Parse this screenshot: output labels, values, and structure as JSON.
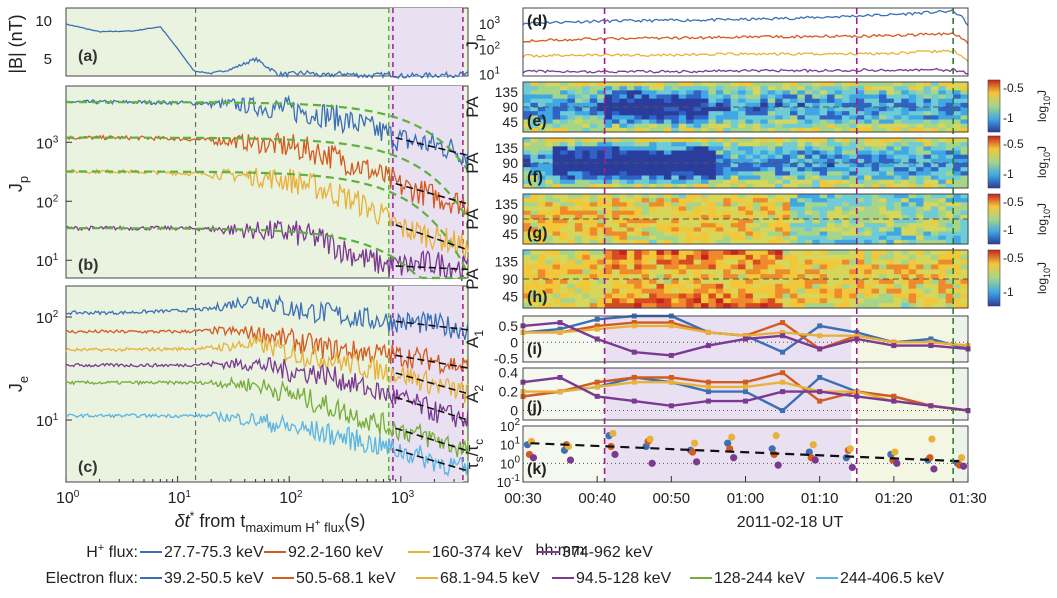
{
  "colors": {
    "hp": [
      "#3B6FB6",
      "#D35B1F",
      "#E8B23A",
      "#7B3A91"
    ],
    "e": [
      "#3B6FB6",
      "#D35B1F",
      "#E8B23A",
      "#7B3A91",
      "#76AC3A",
      "#5CB4E3"
    ],
    "bg_green": "#EAF2E0",
    "bg_purple": "#E9E1F2",
    "fit_green": "#5DB13E",
    "vline_magenta": "#A21C8E",
    "vline_green": "#5DB13E"
  },
  "left": {
    "panels": {
      "a": {
        "label": "(a)",
        "ylabel": "|B| (nT)",
        "yticks": [
          "10",
          "5"
        ]
      },
      "b": {
        "label": "(b)",
        "ylabel": "J",
        "ylabel_sub": "p",
        "yticks": [
          "10",
          "10",
          "10"
        ],
        "ytick_exp": [
          "3",
          "2",
          "1"
        ]
      },
      "c": {
        "label": "(c)",
        "ylabel": "J",
        "ylabel_sub": "e",
        "yticks": [
          "10",
          "10"
        ],
        "ytick_exp": [
          "2",
          "1"
        ]
      }
    },
    "xticks": [
      "10",
      "10",
      "10",
      "10"
    ],
    "xtick_exp": [
      "0",
      "1",
      "2",
      "3"
    ],
    "xlabel": {
      "delta": "δt",
      "star": "*",
      "from": " from t",
      "sub": "maximum H",
      "sub_sup": "+",
      "sub_end": " flux",
      "unit": "(s)"
    }
  },
  "right": {
    "panels": {
      "d": {
        "label": "(d)",
        "ylabel": "J",
        "ylabel_sub": "p",
        "yticks": [
          "10",
          "10",
          "10"
        ],
        "ytick_exp": [
          "3",
          "2",
          "1"
        ]
      },
      "e": {
        "label": "(e)",
        "ylabel": "PA",
        "yticks": [
          "135",
          "90",
          "45"
        ]
      },
      "f": {
        "label": "(f)",
        "ylabel": "PA",
        "yticks": [
          "135",
          "90",
          "45"
        ]
      },
      "g": {
        "label": "(g)",
        "ylabel": "PA",
        "yticks": [
          "135",
          "90",
          "45"
        ]
      },
      "h": {
        "label": "(h)",
        "ylabel": "PA",
        "yticks": [
          "135",
          "90",
          "45"
        ]
      },
      "i": {
        "label": "(i)",
        "ylabel": "A",
        "ylabel_sub": "1",
        "yticks": [
          "0.5",
          "0",
          "-0.5"
        ]
      },
      "j": {
        "label": "(j)",
        "ylabel": "A",
        "ylabel_sub": "2",
        "yticks": [
          "0.4",
          "0.2",
          "0"
        ]
      },
      "k": {
        "label": "(k)",
        "ylabel": "τ",
        "ylabel_sub": "s",
        "ylabel_mid": "/τ",
        "ylabel_sub2": "c",
        "yticks": [
          "10",
          "10",
          "10",
          "10"
        ],
        "ytick_exp": [
          "2",
          "1",
          "0",
          "-1"
        ]
      }
    },
    "xticks": [
      "00:30",
      "00:40",
      "00:50",
      "01:00",
      "01:10",
      "01:20",
      "01:30"
    ],
    "hhmm": "hh:mm",
    "xlabel": "2011-02-18 UT"
  },
  "colorbar": {
    "ticks": [
      "-0.5",
      "-1"
    ],
    "label": "log",
    "label_sub": "10",
    "label_end": "J",
    "count": 4
  },
  "legend": {
    "hp_title": "H",
    "hp_title_sup": "+",
    "hp_title_end": " flux:",
    "hp": [
      "27.7-75.3 keV",
      "92.2-160 keV",
      "160-374 keV",
      "374-962 keV"
    ],
    "e_title": "Electron flux:",
    "e": [
      "39.2-50.5 keV",
      "50.5-68.1 keV",
      "68.1-94.5 keV",
      "94.5-128 keV",
      "128-244 keV",
      "244-406.5 keV"
    ]
  },
  "chart_data": [
    {
      "type": "line",
      "panel": "a",
      "xscale": "log",
      "xlim": [
        1,
        4000
      ],
      "ylim": [
        3,
        11
      ],
      "x": [
        1,
        2,
        4,
        7,
        10,
        14,
        20,
        30,
        50,
        80,
        100,
        150,
        200,
        300,
        500,
        800,
        1000,
        2000,
        4000
      ],
      "series": [
        {
          "values": [
            9.1,
            8.2,
            8.3,
            8.8,
            6.2,
            3.6,
            3.3,
            3.8,
            5.0,
            3.2,
            3.2,
            3.4,
            3.0,
            3.3,
            3.0,
            3.2,
            3.0,
            3.1,
            3.2
          ]
        }
      ]
    },
    {
      "type": "line",
      "panel": "b",
      "xscale": "log",
      "yscale": "log",
      "xlim": [
        1,
        4000
      ],
      "ylim": [
        5,
        9000
      ],
      "x": [
        1,
        3,
        10,
        30,
        100,
        200,
        300,
        500,
        800,
        1000,
        2000,
        3000,
        4000
      ],
      "series": [
        {
          "values": [
            4800,
            4800,
            4700,
            4400,
            3600,
            3000,
            2400,
            1800,
            1300,
            1100,
            900,
            750,
            600
          ]
        },
        {
          "values": [
            1200,
            1200,
            1150,
            1050,
            850,
            650,
            500,
            350,
            220,
            180,
            120,
            100,
            90
          ]
        },
        {
          "values": [
            320,
            320,
            300,
            280,
            230,
            160,
            120,
            80,
            45,
            35,
            25,
            20,
            15
          ]
        },
        {
          "values": [
            35,
            35,
            35,
            33,
            30,
            22,
            15,
            10,
            8,
            8,
            9,
            8,
            7
          ]
        }
      ],
      "fits": [
        "series 1-4 fit (green dashed)"
      ]
    },
    {
      "type": "line",
      "panel": "c",
      "xscale": "log",
      "yscale": "log",
      "xlim": [
        1,
        4000
      ],
      "ylim": [
        2.5,
        200
      ],
      "x": [
        1,
        3,
        10,
        20,
        50,
        100,
        200,
        500,
        1000,
        2000,
        4000
      ],
      "series": [
        {
          "values": [
            110,
            110,
            115,
            120,
            150,
            120,
            110,
            95,
            90,
            85,
            75
          ]
        },
        {
          "values": [
            72,
            72,
            72,
            74,
            70,
            60,
            50,
            45,
            42,
            38,
            32
          ]
        },
        {
          "values": [
            48,
            48,
            49,
            50,
            55,
            45,
            40,
            32,
            28,
            22,
            18
          ]
        },
        {
          "values": [
            34,
            34,
            34,
            35,
            35,
            30,
            28,
            20,
            16,
            12,
            10
          ]
        },
        {
          "values": [
            23,
            23,
            23,
            23,
            22,
            18,
            14,
            10,
            8,
            6.5,
            5
          ]
        },
        {
          "values": [
            11,
            11,
            11,
            11,
            10,
            8.5,
            7.5,
            6,
            5,
            4,
            3.2
          ]
        }
      ]
    },
    {
      "type": "line",
      "panel": "d",
      "xlim": [
        "00:30",
        "01:30"
      ],
      "yscale": "log",
      "ylim": [
        8,
        4000
      ],
      "series": [
        {
          "x": [
            "00:30",
            "00:40",
            "00:50",
            "01:00",
            "01:10",
            "01:20",
            "01:28",
            "01:30"
          ],
          "values": [
            1000,
            1200,
            1300,
            1400,
            1700,
            2200,
            3000,
            800
          ]
        },
        {
          "x": [
            "00:30",
            "00:40",
            "00:50",
            "01:00",
            "01:10",
            "01:20",
            "01:28",
            "01:30"
          ],
          "values": [
            200,
            240,
            260,
            280,
            300,
            320,
            400,
            150
          ]
        },
        {
          "x": [
            "00:30",
            "00:40",
            "00:50",
            "01:00",
            "01:10",
            "01:20",
            "01:28",
            "01:30"
          ],
          "values": [
            50,
            55,
            55,
            60,
            60,
            65,
            80,
            30
          ]
        },
        {
          "x": [
            "00:30",
            "00:40",
            "00:50",
            "01:00",
            "01:10",
            "01:20",
            "01:28",
            "01:30"
          ],
          "values": [
            12,
            12,
            12,
            13,
            13,
            14,
            14,
            10
          ]
        }
      ]
    },
    {
      "type": "line",
      "panel": "i",
      "xlim": [
        "00:30",
        "01:30"
      ],
      "ylim": [
        -0.6,
        0.8
      ],
      "x": [
        "00:30",
        "00:35",
        "00:40",
        "00:45",
        "00:50",
        "00:55",
        "01:00",
        "01:05",
        "01:10",
        "01:15",
        "01:20",
        "01:25",
        "01:30"
      ],
      "series": [
        {
          "values": [
            0.3,
            0.4,
            0.7,
            0.8,
            0.8,
            0.3,
            0.2,
            -0.3,
            0.5,
            0.3,
            0.0,
            0.1,
            -0.2
          ]
        },
        {
          "values": [
            0.3,
            0.3,
            0.5,
            0.6,
            0.6,
            0.3,
            0.2,
            0.6,
            -0.2,
            0.2,
            0.0,
            0.0,
            -0.1
          ]
        },
        {
          "values": [
            0.3,
            0.3,
            0.4,
            0.5,
            0.5,
            0.3,
            0.2,
            0.3,
            0.2,
            0.2,
            0.0,
            0.0,
            -0.1
          ]
        },
        {
          "values": [
            0.5,
            0.6,
            0.1,
            -0.3,
            -0.4,
            -0.1,
            0.1,
            0.2,
            -0.2,
            0.1,
            -0.1,
            -0.1,
            -0.2
          ]
        }
      ]
    },
    {
      "type": "line",
      "panel": "j",
      "xlim": [
        "00:30",
        "01:30"
      ],
      "ylim": [
        -0.1,
        0.45
      ],
      "x": [
        "00:30",
        "00:35",
        "00:40",
        "00:45",
        "00:50",
        "00:55",
        "01:00",
        "01:05",
        "01:10",
        "01:15",
        "01:20",
        "01:25",
        "01:30"
      ],
      "series": [
        {
          "values": [
            0.15,
            0.2,
            0.25,
            0.35,
            0.3,
            0.2,
            0.2,
            0.0,
            0.35,
            0.2,
            0.15,
            0.05,
            0.0
          ]
        },
        {
          "values": [
            0.15,
            0.2,
            0.3,
            0.35,
            0.35,
            0.3,
            0.3,
            0.4,
            0.1,
            0.2,
            0.15,
            0.05,
            0.0
          ]
        },
        {
          "values": [
            0.2,
            0.2,
            0.25,
            0.3,
            0.3,
            0.25,
            0.25,
            0.3,
            0.2,
            0.2,
            0.1,
            0.05,
            0.0
          ]
        },
        {
          "values": [
            0.3,
            0.35,
            0.15,
            0.1,
            0.05,
            0.1,
            0.1,
            0.2,
            0.2,
            0.15,
            0.1,
            0.05,
            0.0
          ]
        }
      ]
    },
    {
      "type": "scatter",
      "panel": "k",
      "xlim": [
        "00:30",
        "01:30"
      ],
      "yscale": "log",
      "ylim": [
        0.1,
        100
      ],
      "x": [
        "00:31",
        "00:36",
        "00:42",
        "00:47",
        "00:53",
        "00:58",
        "01:04",
        "01:09",
        "01:14",
        "01:20",
        "01:25",
        "01:29"
      ],
      "series": [
        {
          "values": [
            10,
            5,
            30,
            8,
            5,
            12,
            6,
            4,
            2,
            3,
            1.5,
            1
          ]
        },
        {
          "values": [
            3,
            10,
            8,
            15,
            4,
            6,
            3,
            2,
            5,
            1.5,
            2,
            0.8
          ]
        },
        {
          "values": [
            15,
            8,
            40,
            20,
            12,
            25,
            30,
            10,
            6,
            4,
            20,
            2
          ]
        },
        {
          "values": [
            2,
            1.5,
            3,
            1,
            1.2,
            2,
            0.8,
            1.5,
            0.6,
            1,
            0.5,
            0.7
          ]
        }
      ],
      "fit": "black dashed trend"
    },
    {
      "type": "heatmap",
      "panels": [
        "e",
        "f",
        "g",
        "h"
      ],
      "x_range": [
        "00:30",
        "01:30"
      ],
      "y_range": [
        0,
        180
      ],
      "color_range": [
        -1.4,
        -0.4
      ]
    }
  ]
}
